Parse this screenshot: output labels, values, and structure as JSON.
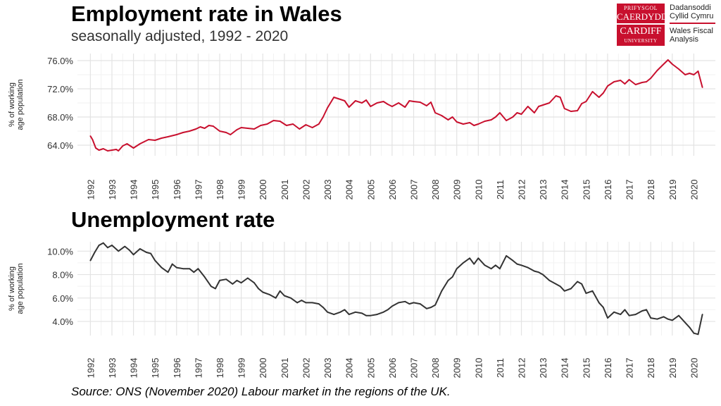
{
  "header": {
    "title": "Employment rate in Wales",
    "subtitle": "seasonally adjusted, 1992 - 2020"
  },
  "logo": {
    "red_line1": "PRIFYSGOL",
    "red_line2": "CAERDYDD",
    "red_line3": "CARDIFF",
    "red_line4": "UNIVERSITY",
    "welsh_line1": "Dadansoddi",
    "welsh_line2": "Cyllid Cymru",
    "english_line1": "Wales Fiscal",
    "english_line2": "Analysis",
    "brand_color": "#c8102e"
  },
  "chart_data": [
    {
      "type": "line",
      "title": "Employment rate in Wales",
      "subtitle": "seasonally adjusted, 1992 - 2020",
      "ylabel_line1": "% of working",
      "ylabel_line2": "age population",
      "xlabel": "",
      "ylim": [
        62.5,
        77.0
      ],
      "xlim": [
        1991.4,
        2021.0
      ],
      "y_ticks": [
        64,
        68,
        72,
        76
      ],
      "y_tick_labels": [
        "64.0%",
        "68.0%",
        "72.0%",
        "76.0%"
      ],
      "x_ticks": [
        1992,
        1993,
        1994,
        1995,
        1996,
        1997,
        1998,
        1999,
        2000,
        2001,
        2002,
        2003,
        2004,
        2005,
        2006,
        2007,
        2008,
        2009,
        2010,
        2011,
        2012,
        2013,
        2014,
        2015,
        2016,
        2017,
        2018,
        2019,
        2020
      ],
      "x_tick_labels": [
        "1992",
        "1993",
        "1994",
        "1995",
        "1996",
        "1997",
        "1998",
        "1999",
        "2000",
        "2001",
        "2002",
        "2003",
        "2004",
        "2005",
        "2006",
        "2007",
        "2008",
        "2009",
        "2010",
        "2011",
        "2012",
        "2013",
        "2014",
        "2015",
        "2016",
        "2017",
        "2018",
        "2019",
        "2020"
      ],
      "grid": true,
      "color": "#c8102e",
      "series": [
        {
          "x": [
            1992.0,
            1992.1,
            1992.25,
            1992.4,
            1992.6,
            1992.8,
            1993.0,
            1993.2,
            1993.3,
            1993.5,
            1993.7,
            1994.0,
            1994.3,
            1994.5,
            1994.7,
            1995.0,
            1995.3,
            1995.6,
            1996.0,
            1996.3,
            1996.6,
            1996.9,
            1997.1,
            1997.3,
            1997.5,
            1997.7,
            1998.0,
            1998.3,
            1998.5,
            1998.8,
            1999.0,
            1999.3,
            1999.6,
            1999.9,
            2000.2,
            2000.5,
            2000.8,
            2001.1,
            2001.4,
            2001.7,
            2002.0,
            2002.3,
            2002.6,
            2002.8,
            2003.0,
            2003.3,
            2003.6,
            2003.8,
            2004.0,
            2004.3,
            2004.6,
            2004.8,
            2005.0,
            2005.3,
            2005.6,
            2005.8,
            2006.0,
            2006.3,
            2006.6,
            2006.8,
            2007.0,
            2007.3,
            2007.6,
            2007.8,
            2008.0,
            2008.3,
            2008.6,
            2008.8,
            2009.0,
            2009.3,
            2009.6,
            2009.8,
            2010.0,
            2010.3,
            2010.6,
            2010.8,
            2011.0,
            2011.3,
            2011.6,
            2011.8,
            2012.0,
            2012.3,
            2012.6,
            2012.8,
            2013.0,
            2013.3,
            2013.6,
            2013.8,
            2014.0,
            2014.3,
            2014.6,
            2014.8,
            2015.0,
            2015.3,
            2015.6,
            2015.8,
            2016.0,
            2016.3,
            2016.6,
            2016.8,
            2017.0,
            2017.3,
            2017.6,
            2017.8,
            2018.0,
            2018.3,
            2018.6,
            2018.8,
            2019.0,
            2019.3,
            2019.6,
            2019.8,
            2020.0,
            2020.2,
            2020.4
          ],
          "values": [
            65.3,
            64.8,
            63.6,
            63.3,
            63.5,
            63.2,
            63.3,
            63.4,
            63.2,
            63.9,
            64.2,
            63.6,
            64.2,
            64.5,
            64.8,
            64.7,
            65.0,
            65.2,
            65.5,
            65.8,
            66.0,
            66.3,
            66.6,
            66.4,
            66.8,
            66.7,
            66.0,
            65.8,
            65.5,
            66.2,
            66.5,
            66.4,
            66.3,
            66.8,
            67.0,
            67.5,
            67.4,
            66.8,
            67.0,
            66.3,
            66.9,
            66.5,
            67.0,
            68.0,
            69.3,
            70.8,
            70.5,
            70.3,
            69.4,
            70.3,
            70.0,
            70.4,
            69.5,
            70.0,
            70.2,
            69.8,
            69.5,
            70.0,
            69.4,
            70.3,
            70.2,
            70.1,
            69.6,
            70.1,
            68.6,
            68.2,
            67.6,
            68.0,
            67.3,
            67.0,
            67.2,
            66.8,
            67.0,
            67.4,
            67.6,
            68.0,
            68.6,
            67.5,
            68.0,
            68.6,
            68.4,
            69.5,
            68.6,
            69.5,
            69.7,
            70.0,
            71.0,
            70.8,
            69.2,
            68.8,
            68.9,
            69.9,
            70.2,
            71.6,
            70.8,
            71.4,
            72.4,
            73.0,
            73.2,
            72.7,
            73.3,
            72.6,
            72.9,
            73.0,
            73.5,
            74.6,
            75.5,
            76.1,
            75.5,
            74.8,
            74.0,
            74.2,
            74.0,
            74.5,
            72.2
          ]
        }
      ]
    },
    {
      "type": "line",
      "title": "Unemployment rate",
      "ylabel_line1": "% of working",
      "ylabel_line2": "age population",
      "xlabel": "",
      "ylim": [
        2.8,
        10.8
      ],
      "xlim": [
        1991.4,
        2021.0
      ],
      "y_ticks": [
        4,
        6,
        8,
        10
      ],
      "y_tick_labels": [
        "4.0%",
        "6.0%",
        "8.0%",
        "10.0%"
      ],
      "x_ticks": [
        1992,
        1993,
        1994,
        1995,
        1996,
        1997,
        1998,
        1999,
        2000,
        2001,
        2002,
        2003,
        2004,
        2005,
        2006,
        2007,
        2008,
        2009,
        2010,
        2011,
        2012,
        2013,
        2014,
        2015,
        2016,
        2017,
        2018,
        2019,
        2020
      ],
      "x_tick_labels": [
        "1992",
        "1993",
        "1994",
        "1995",
        "1996",
        "1997",
        "1998",
        "1999",
        "2000",
        "2001",
        "2002",
        "2003",
        "2004",
        "2005",
        "2006",
        "2007",
        "2008",
        "2009",
        "2010",
        "2011",
        "2012",
        "2013",
        "2014",
        "2015",
        "2016",
        "2017",
        "2018",
        "2019",
        "2020"
      ],
      "grid": true,
      "color": "#333333",
      "series": [
        {
          "x": [
            1992.0,
            1992.2,
            1992.4,
            1992.6,
            1992.8,
            1993.0,
            1993.3,
            1993.6,
            1993.8,
            1994.0,
            1994.3,
            1994.6,
            1994.8,
            1995.0,
            1995.3,
            1995.6,
            1995.8,
            1996.0,
            1996.3,
            1996.6,
            1996.8,
            1997.0,
            1997.3,
            1997.6,
            1997.8,
            1998.0,
            1998.3,
            1998.6,
            1998.8,
            1999.0,
            1999.3,
            1999.6,
            1999.8,
            2000.0,
            2000.3,
            2000.6,
            2000.8,
            2001.0,
            2001.3,
            2001.6,
            2001.8,
            2002.0,
            2002.3,
            2002.6,
            2002.8,
            2003.0,
            2003.3,
            2003.6,
            2003.8,
            2004.0,
            2004.3,
            2004.6,
            2004.8,
            2005.0,
            2005.3,
            2005.6,
            2005.8,
            2006.0,
            2006.3,
            2006.6,
            2006.8,
            2007.0,
            2007.3,
            2007.6,
            2007.8,
            2008.0,
            2008.3,
            2008.6,
            2008.8,
            2009.0,
            2009.3,
            2009.6,
            2009.8,
            2010.0,
            2010.3,
            2010.6,
            2010.8,
            2011.0,
            2011.3,
            2011.6,
            2011.8,
            2012.0,
            2012.3,
            2012.6,
            2012.8,
            2013.0,
            2013.3,
            2013.6,
            2013.8,
            2014.0,
            2014.3,
            2014.6,
            2014.8,
            2015.0,
            2015.3,
            2015.6,
            2015.8,
            2016.0,
            2016.3,
            2016.6,
            2016.8,
            2017.0,
            2017.3,
            2017.6,
            2017.8,
            2018.0,
            2018.3,
            2018.6,
            2018.8,
            2019.0,
            2019.3,
            2019.6,
            2019.8,
            2020.0,
            2020.2,
            2020.4
          ],
          "values": [
            9.2,
            9.9,
            10.5,
            10.7,
            10.3,
            10.5,
            10.0,
            10.4,
            10.1,
            9.7,
            10.2,
            9.9,
            9.8,
            9.2,
            8.6,
            8.2,
            8.9,
            8.6,
            8.5,
            8.5,
            8.2,
            8.5,
            7.8,
            7.0,
            6.8,
            7.5,
            7.6,
            7.2,
            7.5,
            7.3,
            7.7,
            7.3,
            6.8,
            6.5,
            6.3,
            6.0,
            6.6,
            6.2,
            6.0,
            5.6,
            5.8,
            5.6,
            5.6,
            5.5,
            5.2,
            4.8,
            4.6,
            4.8,
            5.0,
            4.6,
            4.8,
            4.7,
            4.5,
            4.5,
            4.6,
            4.8,
            5.0,
            5.3,
            5.6,
            5.7,
            5.5,
            5.6,
            5.5,
            5.1,
            5.2,
            5.4,
            6.6,
            7.5,
            7.8,
            8.5,
            9.0,
            9.4,
            8.9,
            9.4,
            8.8,
            8.5,
            8.8,
            8.5,
            9.6,
            9.2,
            8.9,
            8.8,
            8.6,
            8.3,
            8.2,
            8.0,
            7.5,
            7.2,
            7.0,
            6.6,
            6.8,
            7.4,
            7.2,
            6.4,
            6.6,
            5.6,
            5.2,
            4.3,
            4.8,
            4.6,
            5.0,
            4.5,
            4.6,
            4.9,
            5.0,
            4.3,
            4.2,
            4.4,
            4.2,
            4.1,
            4.5,
            3.9,
            3.5,
            3.0,
            2.9,
            4.6
          ]
        }
      ]
    }
  ],
  "footer": {
    "source": "Source: ONS (November 2020) Labour market in the regions of the UK."
  }
}
